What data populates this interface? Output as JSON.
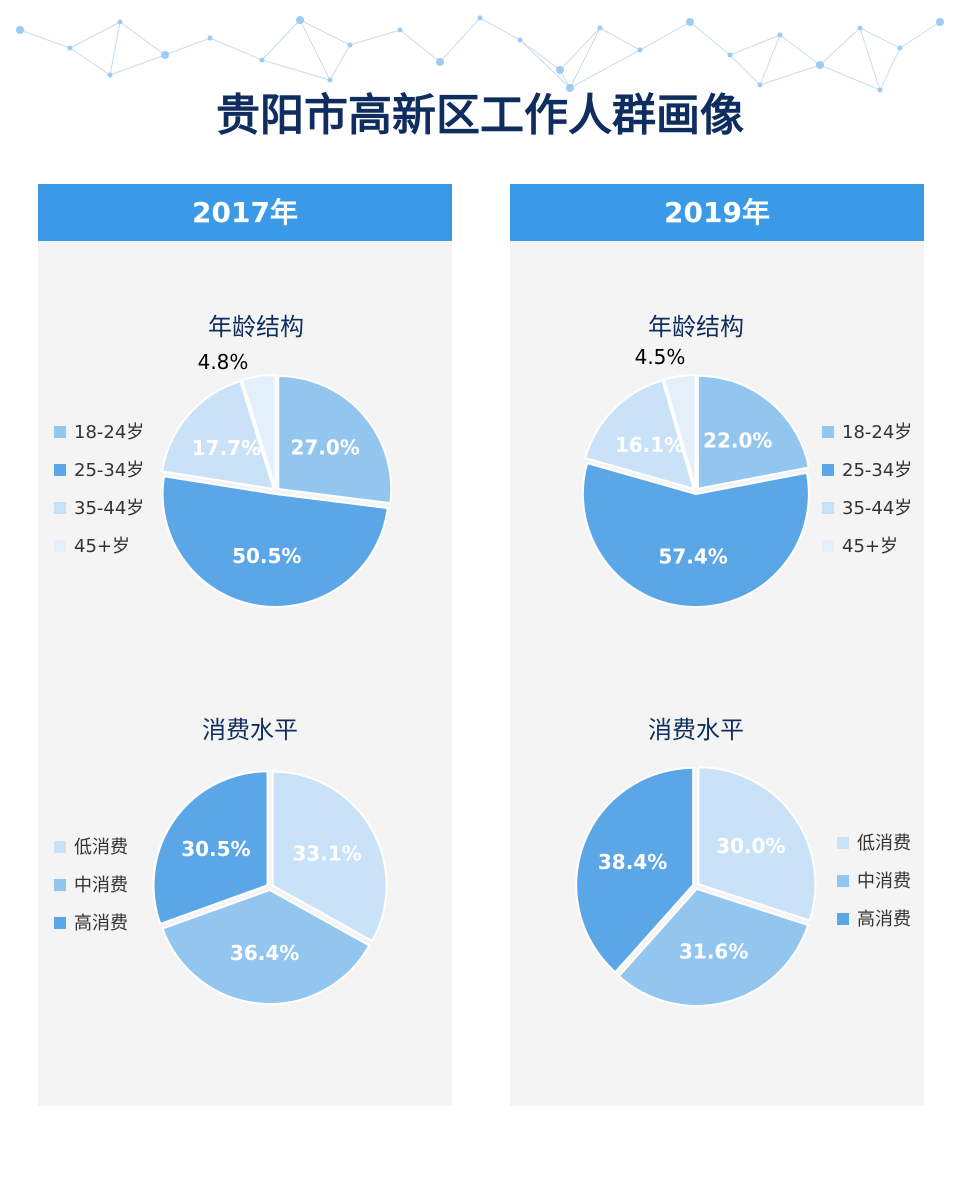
{
  "page": {
    "title": "贵阳市高新区工作人群画像"
  },
  "colors": {
    "header_bg": "#3a9ae8",
    "title": "#0f2d5e",
    "panel_bg": "#f4f4f4",
    "slice_light": "#c9e2f7",
    "slice_medium": "#92c6ef",
    "slice_strong": "#5aa6e6",
    "slice_palest": "#e3f0fb",
    "network_line": "#c9dcf0",
    "network_dot": "#9ecbf2"
  },
  "panels": [
    {
      "year_label": "2017年"
    },
    {
      "year_label": "2019年"
    }
  ],
  "chart_data": [
    {
      "type": "pie",
      "panel": 0,
      "title": "年龄结构",
      "legend_position": "left",
      "slices": [
        {
          "label": "18-24岁",
          "value": 27.0,
          "display": "27.0%",
          "color": "#92c6ef",
          "label_color": "#ffffff"
        },
        {
          "label": "25-34岁",
          "value": 50.5,
          "display": "50.5%",
          "color": "#5aa6e6",
          "label_color": "#ffffff"
        },
        {
          "label": "35-44岁",
          "value": 17.7,
          "display": "17.7%",
          "color": "#c9e2f7",
          "label_color": "#ffffff"
        },
        {
          "label": "45+岁",
          "value": 4.8,
          "display": "4.8%",
          "color": "#e3f0fb",
          "label_color": "#000000",
          "outside": true
        }
      ]
    },
    {
      "type": "pie",
      "panel": 0,
      "title": "消费水平",
      "legend_position": "left",
      "slices": [
        {
          "label": "低消费",
          "value": 33.1,
          "display": "33.1%",
          "color": "#c9e2f7",
          "label_color": "#ffffff"
        },
        {
          "label": "中消费",
          "value": 36.4,
          "display": "36.4%",
          "color": "#92c6ef",
          "label_color": "#ffffff"
        },
        {
          "label": "高消费",
          "value": 30.5,
          "display": "30.5%",
          "color": "#5aa6e6",
          "label_color": "#ffffff"
        }
      ]
    },
    {
      "type": "pie",
      "panel": 1,
      "title": "年龄结构",
      "legend_position": "right",
      "slices": [
        {
          "label": "18-24岁",
          "value": 22.0,
          "display": "22.0%",
          "color": "#92c6ef",
          "label_color": "#ffffff"
        },
        {
          "label": "25-34岁",
          "value": 57.4,
          "display": "57.4%",
          "color": "#5aa6e6",
          "label_color": "#ffffff"
        },
        {
          "label": "35-44岁",
          "value": 16.1,
          "display": "16.1%",
          "color": "#c9e2f7",
          "label_color": "#ffffff"
        },
        {
          "label": "45+岁",
          "value": 4.5,
          "display": "4.5%",
          "color": "#e3f0fb",
          "label_color": "#000000",
          "outside": true
        }
      ]
    },
    {
      "type": "pie",
      "panel": 1,
      "title": "消费水平",
      "legend_position": "right",
      "slices": [
        {
          "label": "低消费",
          "value": 30.0,
          "display": "30.0%",
          "color": "#c9e2f7",
          "label_color": "#ffffff"
        },
        {
          "label": "中消费",
          "value": 31.6,
          "display": "31.6%",
          "color": "#92c6ef",
          "label_color": "#ffffff"
        },
        {
          "label": "高消费",
          "value": 38.4,
          "display": "38.4%",
          "color": "#5aa6e6",
          "label_color": "#ffffff"
        }
      ]
    }
  ]
}
